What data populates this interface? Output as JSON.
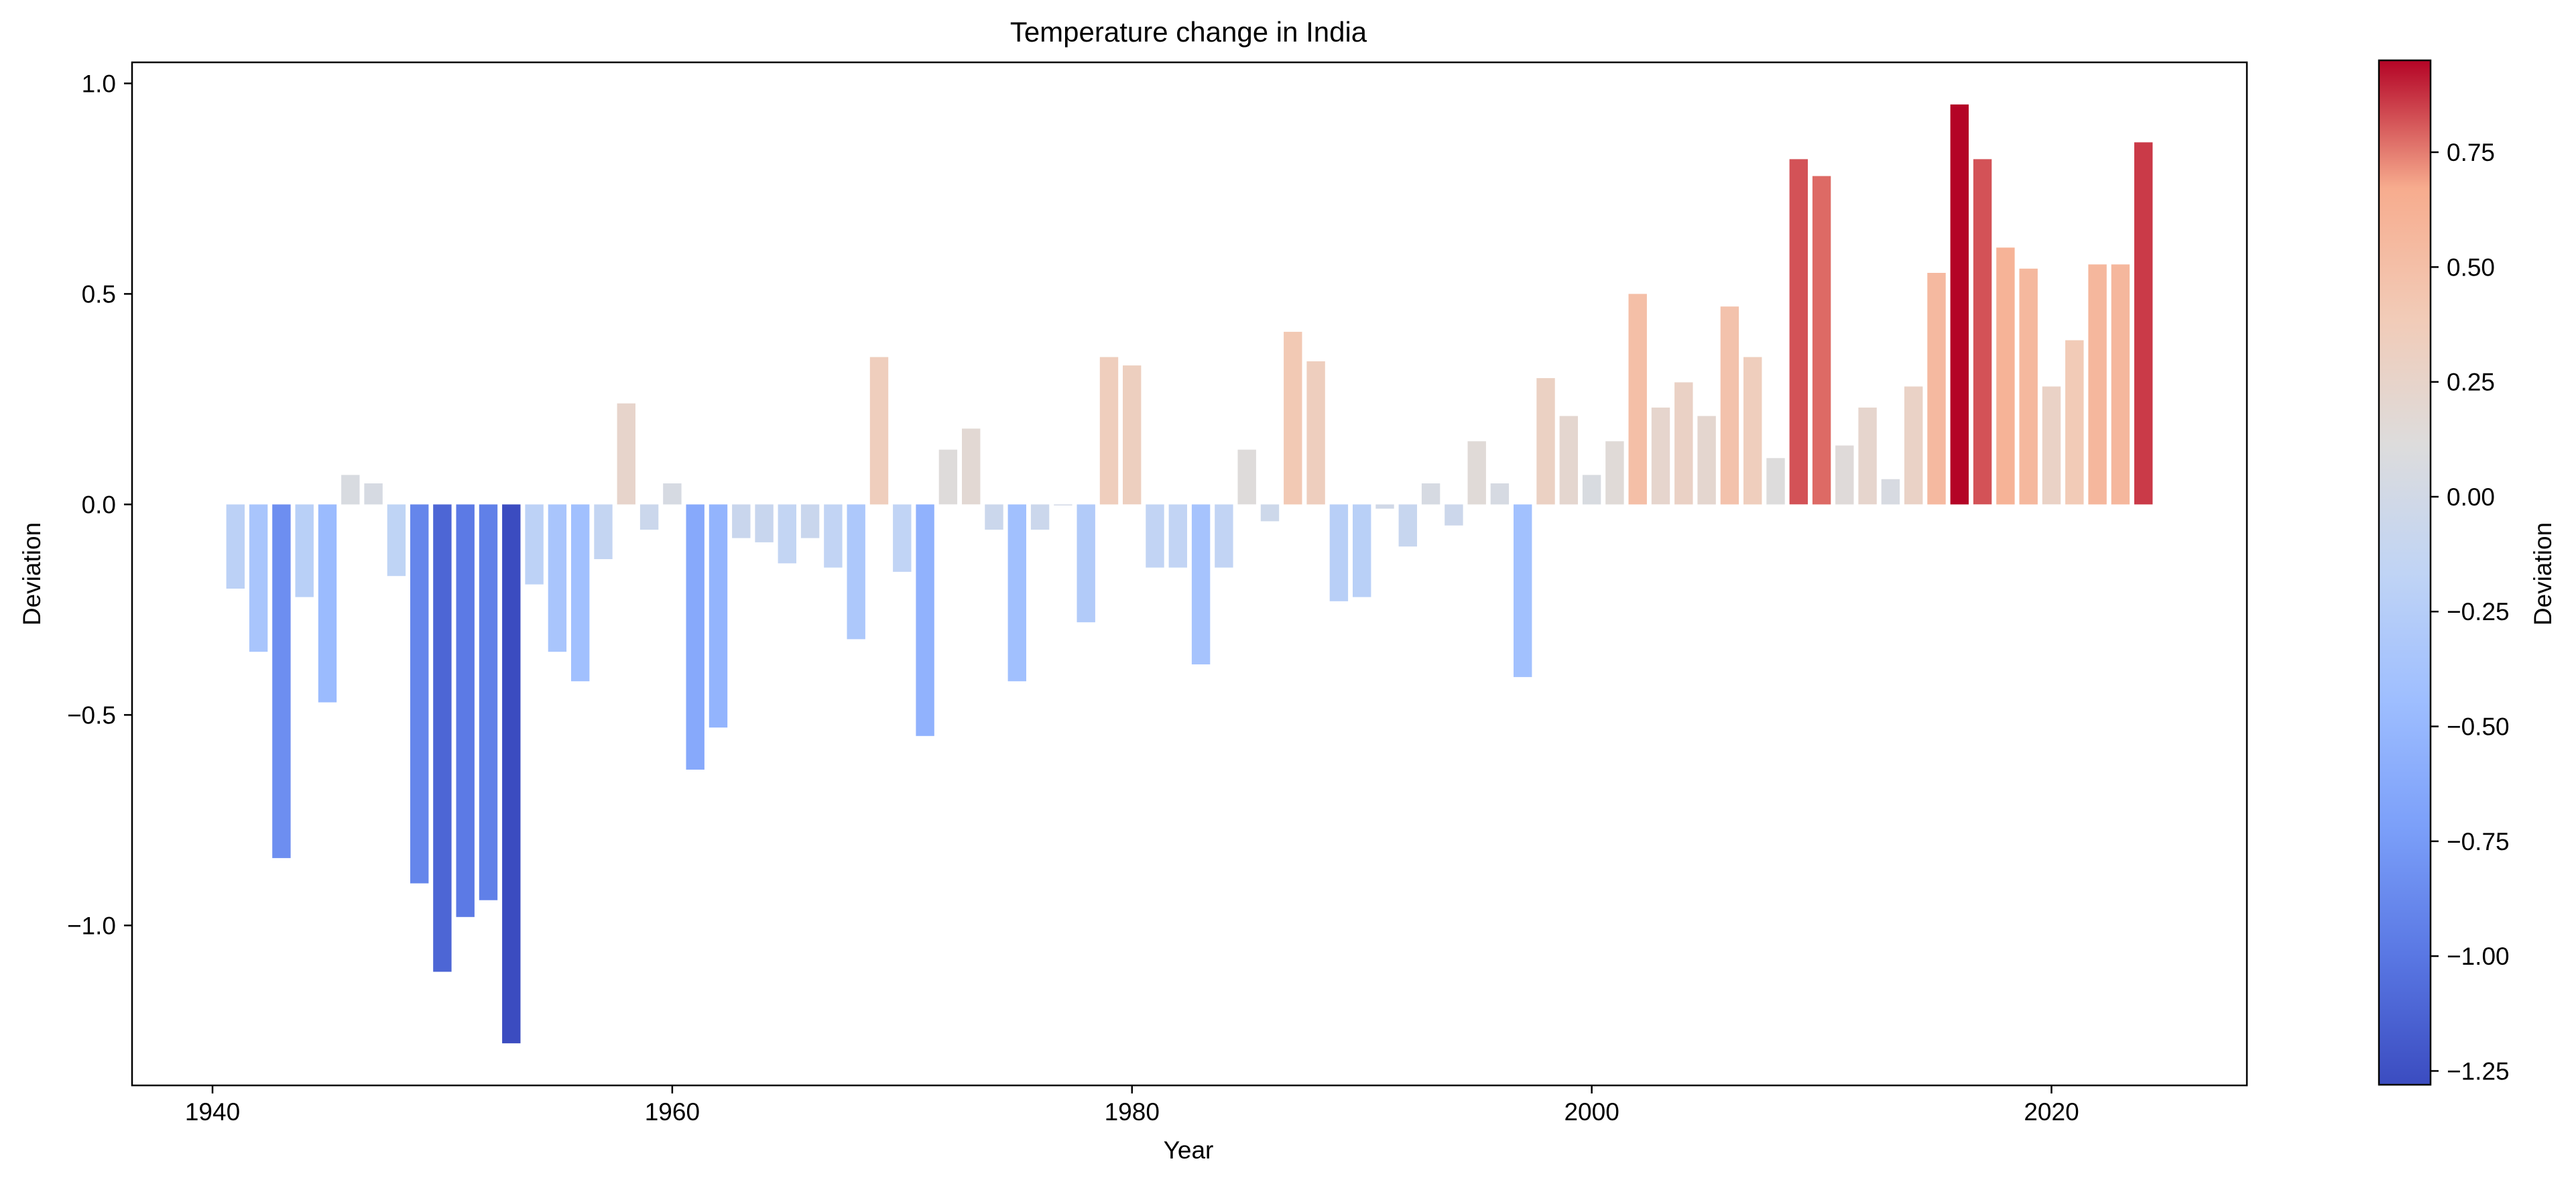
{
  "chart_data": {
    "type": "bar",
    "title": "Temperature change in India",
    "xlabel": "Year",
    "ylabel": "Deviation",
    "xlim": [
      1936.5,
      2028.5
    ],
    "ylim": [
      -1.38,
      1.05
    ],
    "x_ticks": [
      1940,
      1960,
      1980,
      2000,
      2020
    ],
    "y_ticks": [
      1.0,
      0.5,
      0.0,
      -0.5,
      -1.0
    ],
    "y_tick_labels": [
      "1.0",
      "0.5",
      "0.0",
      "−0.5",
      "−1.0"
    ],
    "grid": false,
    "x": [
      1941,
      1942,
      1943,
      1944,
      1945,
      1946,
      1947,
      1948,
      1949,
      1950,
      1951,
      1952,
      1953,
      1954,
      1955,
      1956,
      1957,
      1958,
      1959,
      1960,
      1961,
      1962,
      1963,
      1964,
      1965,
      1966,
      1967,
      1968,
      1969,
      1970,
      1971,
      1972,
      1973,
      1974,
      1975,
      1976,
      1977,
      1978,
      1979,
      1980,
      1981,
      1982,
      1983,
      1984,
      1985,
      1986,
      1987,
      1988,
      1989,
      1990,
      1991,
      1992,
      1993,
      1994,
      1995,
      1996,
      1997,
      1998,
      1999,
      2000,
      2001,
      2002,
      2003,
      2004,
      2005,
      2006,
      2007,
      2008,
      2009,
      2010,
      2011,
      2012,
      2013,
      2014,
      2015,
      2016,
      2017,
      2018,
      2019,
      2020,
      2021,
      2022,
      2023,
      2024
    ],
    "values": [
      -0.2,
      -0.35,
      -0.84,
      -0.22,
      -0.47,
      0.07,
      0.05,
      -0.17,
      -0.9,
      -1.11,
      -0.98,
      -0.94,
      -1.28,
      -0.19,
      -0.35,
      -0.42,
      -0.13,
      0.24,
      -0.06,
      0.05,
      -0.63,
      -0.53,
      -0.08,
      -0.09,
      -0.14,
      -0.08,
      -0.15,
      -0.32,
      0.35,
      -0.16,
      -0.55,
      0.13,
      0.18,
      -0.06,
      -0.42,
      -0.06,
      0.0,
      -0.28,
      0.35,
      0.33,
      -0.15,
      -0.15,
      -0.38,
      -0.15,
      0.13,
      -0.04,
      0.41,
      0.34,
      -0.23,
      -0.22,
      -0.01,
      -0.1,
      0.05,
      -0.05,
      0.15,
      0.05,
      -0.41,
      0.3,
      0.21,
      0.07,
      0.15,
      0.5,
      0.23,
      0.29,
      0.21,
      0.47,
      0.35,
      0.11,
      0.82,
      0.78,
      0.14,
      0.23,
      0.06,
      0.28,
      0.55,
      0.95,
      0.82,
      0.61,
      0.56,
      0.28,
      0.39,
      0.57,
      0.57,
      0.86
    ],
    "colorbar": {
      "label": "Deviation",
      "colormap": "coolwarm",
      "range": [
        -1.28,
        0.95
      ],
      "ticks": [
        0.75,
        0.5,
        0.25,
        0.0,
        -0.25,
        -0.5,
        -0.75,
        -1.0,
        -1.25
      ],
      "tick_labels": [
        "0.75",
        "0.50",
        "0.25",
        "0.00",
        "−0.25",
        "−0.50",
        "−0.75",
        "−1.00",
        "−1.25"
      ]
    },
    "colors": {
      "cold": "#3b4cc0",
      "neutral": "#dddddd",
      "warm": "#b40426",
      "axis": "#000000"
    }
  }
}
